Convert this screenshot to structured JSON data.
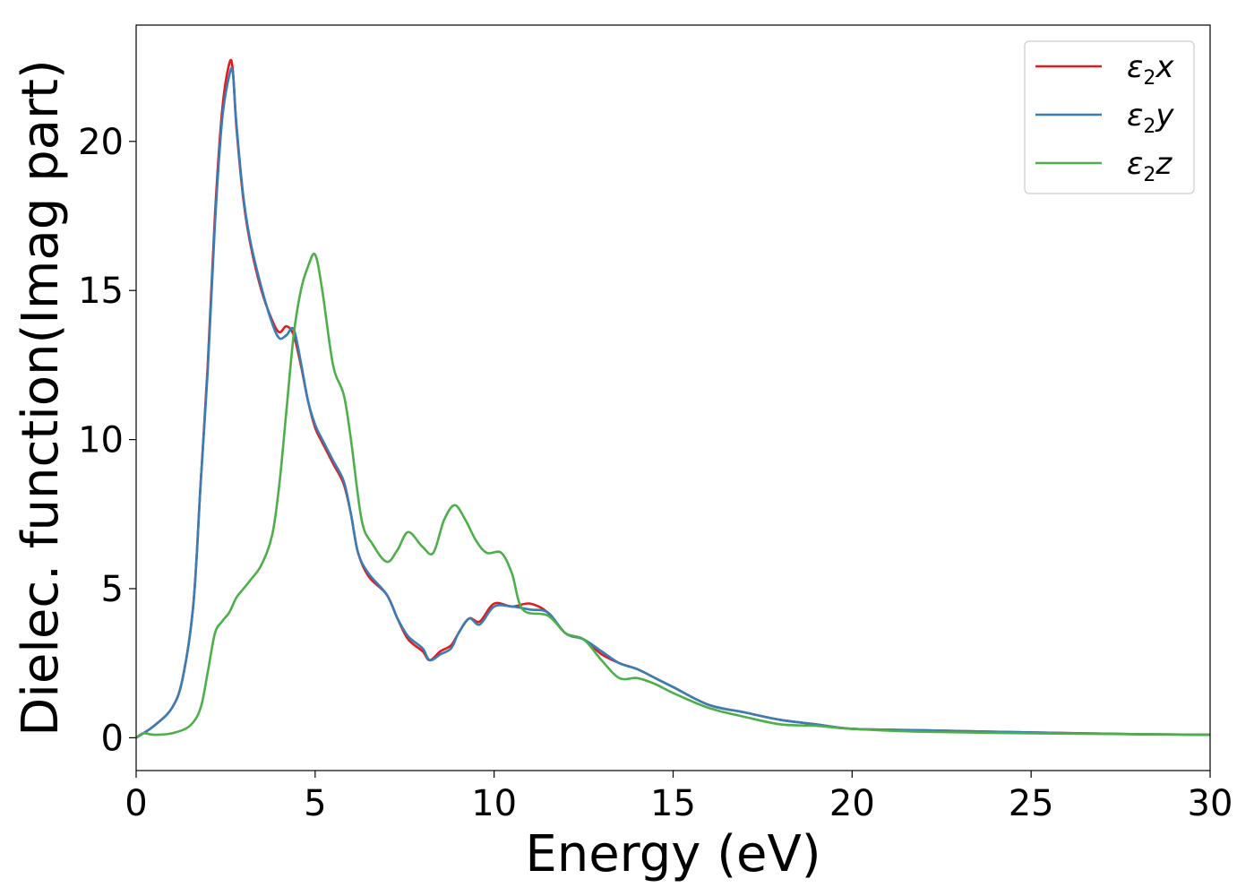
{
  "chart_data": {
    "type": "line",
    "xlabel": "Energy (eV)",
    "ylabel": "Dielec. function(Imag part)",
    "xlim": [
      0,
      30
    ],
    "ylim": [
      -1.1,
      23.9
    ],
    "xticks": [
      0,
      5,
      10,
      15,
      20,
      25,
      30
    ],
    "yticks": [
      0,
      5,
      10,
      15,
      20
    ],
    "grid": false,
    "legend_position": "top-right",
    "series": [
      {
        "name": "ε2x",
        "legend_base": "ε",
        "legend_sub": "2",
        "legend_var": "x",
        "color": "#e41a1c",
        "x": [
          0,
          0.5,
          1.0,
          1.3,
          1.6,
          1.8,
          2.0,
          2.2,
          2.4,
          2.6,
          2.7,
          2.8,
          3.0,
          3.2,
          3.5,
          3.8,
          4.0,
          4.2,
          4.4,
          4.6,
          4.8,
          5.0,
          5.2,
          5.5,
          5.8,
          6.0,
          6.2,
          6.5,
          7.0,
          7.3,
          7.6,
          8.0,
          8.2,
          8.5,
          8.8,
          9.0,
          9.3,
          9.6,
          10.0,
          10.5,
          11.0,
          11.5,
          12.0,
          12.5,
          13.0,
          13.5,
          14.0,
          14.5,
          15.0,
          16.0,
          17.0,
          18.0,
          19.0,
          20.0,
          22.0,
          25.0,
          28.0,
          30.0
        ],
        "y": [
          0,
          0.4,
          1.0,
          2.0,
          4.5,
          8.5,
          12.5,
          17.5,
          21.0,
          22.6,
          22.4,
          20.5,
          18.0,
          16.5,
          15.0,
          14.0,
          13.6,
          13.8,
          13.5,
          12.5,
          11.3,
          10.4,
          9.9,
          9.2,
          8.5,
          7.5,
          6.2,
          5.4,
          4.8,
          4.0,
          3.3,
          2.9,
          2.6,
          2.9,
          3.1,
          3.5,
          4.0,
          3.9,
          4.5,
          4.4,
          4.5,
          4.2,
          3.5,
          3.3,
          2.8,
          2.5,
          2.3,
          2.0,
          1.7,
          1.1,
          0.85,
          0.6,
          0.45,
          0.3,
          0.25,
          0.18,
          0.12,
          0.1
        ]
      },
      {
        "name": "ε2y",
        "legend_base": "ε",
        "legend_sub": "2",
        "legend_var": "y",
        "color": "#377eb8",
        "x": [
          0,
          0.5,
          1.0,
          1.3,
          1.6,
          1.8,
          2.0,
          2.2,
          2.4,
          2.6,
          2.7,
          2.8,
          3.0,
          3.2,
          3.5,
          3.8,
          4.0,
          4.2,
          4.4,
          4.6,
          4.8,
          5.0,
          5.2,
          5.5,
          5.8,
          6.0,
          6.2,
          6.5,
          7.0,
          7.3,
          7.6,
          8.0,
          8.2,
          8.5,
          8.8,
          9.0,
          9.3,
          9.6,
          10.0,
          10.5,
          11.0,
          11.5,
          12.0,
          12.5,
          13.0,
          13.5,
          14.0,
          14.5,
          15.0,
          16.0,
          17.0,
          18.0,
          19.0,
          20.0,
          22.0,
          25.0,
          28.0,
          30.0
        ],
        "y": [
          0,
          0.4,
          1.0,
          2.0,
          4.5,
          8.5,
          12.3,
          17.2,
          20.7,
          22.2,
          22.3,
          20.6,
          18.1,
          16.6,
          15.1,
          13.9,
          13.4,
          13.5,
          13.7,
          12.6,
          11.3,
          10.5,
          10.0,
          9.3,
          8.6,
          7.5,
          6.2,
          5.5,
          4.8,
          4.0,
          3.4,
          3.0,
          2.6,
          2.8,
          3.0,
          3.5,
          4.0,
          3.8,
          4.4,
          4.4,
          4.3,
          4.2,
          3.5,
          3.3,
          2.9,
          2.5,
          2.3,
          2.0,
          1.7,
          1.1,
          0.85,
          0.6,
          0.45,
          0.3,
          0.25,
          0.18,
          0.12,
          0.1
        ]
      },
      {
        "name": "ε2z",
        "legend_base": "ε",
        "legend_sub": "2",
        "legend_var": "z",
        "color": "#4daf4a",
        "x": [
          0,
          0.2,
          0.5,
          1.0,
          1.5,
          1.8,
          2.0,
          2.2,
          2.4,
          2.6,
          2.8,
          3.0,
          3.2,
          3.5,
          3.8,
          4.0,
          4.2,
          4.4,
          4.6,
          4.8,
          5.0,
          5.2,
          5.5,
          5.8,
          6.0,
          6.3,
          6.6,
          7.0,
          7.3,
          7.6,
          8.0,
          8.3,
          8.6,
          8.9,
          9.2,
          9.5,
          9.8,
          10.2,
          10.5,
          10.8,
          11.5,
          12.0,
          12.5,
          13.0,
          13.5,
          14.0,
          14.5,
          15.0,
          16.0,
          17.0,
          18.0,
          19.0,
          20.0,
          22.0,
          25.0,
          28.0,
          30.0
        ],
        "y": [
          0,
          0.15,
          0.1,
          0.15,
          0.4,
          1.0,
          2.2,
          3.5,
          3.9,
          4.2,
          4.7,
          5.0,
          5.3,
          5.8,
          6.8,
          8.5,
          11.0,
          13.5,
          15.0,
          15.8,
          16.2,
          15.0,
          12.5,
          11.5,
          10.0,
          7.3,
          6.5,
          5.9,
          6.3,
          6.9,
          6.4,
          6.2,
          7.3,
          7.8,
          7.3,
          6.6,
          6.2,
          6.2,
          5.5,
          4.3,
          4.1,
          3.5,
          3.3,
          2.6,
          2.0,
          2.0,
          1.8,
          1.5,
          1.0,
          0.7,
          0.45,
          0.4,
          0.3,
          0.2,
          0.15,
          0.12,
          0.1
        ]
      }
    ]
  }
}
